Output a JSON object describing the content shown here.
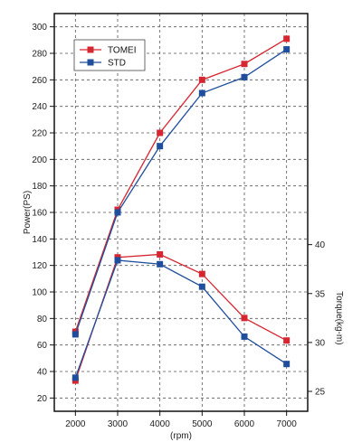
{
  "chart_data": {
    "type": "line",
    "x": [
      2000,
      3000,
      4000,
      5000,
      6000,
      7000
    ],
    "xlabel": "(rpm)",
    "xlim": [
      1500,
      7500
    ],
    "y_left": {
      "label": "Power(PS)",
      "ylim": [
        10,
        310
      ],
      "ticks": [
        20,
        40,
        60,
        80,
        100,
        120,
        140,
        160,
        180,
        200,
        220,
        240,
        260,
        280,
        300
      ]
    },
    "y_right": {
      "label": "Torque(kg-m)",
      "ticks": [
        25,
        30,
        35,
        40
      ]
    },
    "grid": true,
    "legend": "top-left",
    "series": [
      {
        "name": "TOMEI",
        "metric": "power",
        "color": "#d62631",
        "values": [
          70,
          162,
          220,
          260,
          272,
          291
        ]
      },
      {
        "name": "STD",
        "metric": "power",
        "color": "#1f4e9c",
        "values": [
          68,
          160,
          210,
          250,
          262,
          283
        ]
      },
      {
        "name": "TOMEI",
        "metric": "torque",
        "color": "#d62631",
        "values": [
          26.1,
          38.7,
          39.0,
          37.0,
          32.5,
          30.2
        ]
      },
      {
        "name": "STD",
        "metric": "torque",
        "color": "#1f4e9c",
        "values": [
          26.4,
          38.4,
          38.0,
          35.7,
          30.6,
          27.8
        ]
      }
    ],
    "legend_entries": [
      {
        "name": "TOMEI",
        "color": "#d62631"
      },
      {
        "name": "STD",
        "color": "#1f4e9c"
      }
    ]
  }
}
